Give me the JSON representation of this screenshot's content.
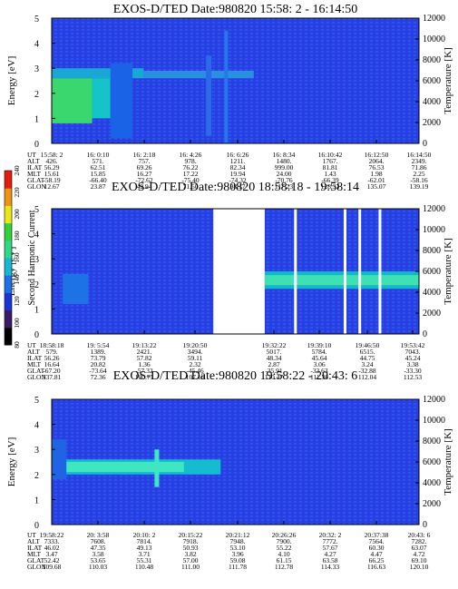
{
  "panels": [
    {
      "title": "EXOS-D/TED   Date:980820  15:58: 2 - 16:14:50",
      "ylabel_left": "Energy [eV]",
      "ylabel_right": "Temperature [K]",
      "table": {
        "row_labels": [
          "UT",
          "ALT",
          "ILAT",
          "MLT",
          "GLAT",
          "GLON"
        ],
        "columns": [
          [
            "15:58: 2",
            "426.",
            "56.29",
            "15.61",
            "-58.19",
            "12.67"
          ],
          [
            "16: 0:10",
            "571.",
            "62.51",
            "15.85",
            "-66.40",
            "23.87"
          ],
          [
            "16: 2:18",
            "757.",
            "69.26",
            "16.27",
            "-72.62",
            "42.94"
          ],
          [
            "16: 4:26",
            "978.",
            "76.22",
            "17.22",
            "-75.40",
            "71.50"
          ],
          [
            "16: 6:26",
            "1211.",
            "82.34",
            "19.94",
            "-74.32",
            "98.17"
          ],
          [
            "16: 8:34",
            "1480.",
            "999.00",
            "24.00",
            "-70.76",
            "117.23"
          ],
          [
            "16:10:42",
            "1767.",
            "81.81",
            "1.43",
            "-66.39",
            "128.33"
          ],
          [
            "16:12:50",
            "2064.",
            "76.53",
            "1.98",
            "-62.01",
            "135.07"
          ],
          [
            "16:14:50",
            "2349.",
            "71.86",
            "2.25",
            "-58.16",
            "139.19"
          ]
        ]
      }
    },
    {
      "title": "EXOS-D/TED   Date:980820  18:58:18 - 19:58:14",
      "ylabel_left": "Energy [eV]",
      "ylabel_right": "Temperature [K]",
      "table": {
        "row_labels": [
          "UT",
          "ALT",
          "ILAT",
          "MLT",
          "GLAT",
          "GLON"
        ],
        "columns": [
          [
            "18:58:18",
            "579.",
            "56.26",
            "16.64",
            "-67.20",
            "337.81"
          ],
          [
            "19: 5:54",
            "1389.",
            "73.79",
            "20.82",
            "-73.64",
            "72.36"
          ],
          [
            "19:13:22",
            "2421.",
            "57.82",
            "1.36",
            "-57.32",
            "100.75"
          ],
          [
            "19:20:50",
            "3494.",
            "59.11",
            "2.32",
            "-45.46",
            "107.16"
          ],
          [
            "19:32:22",
            "5017.",
            "48.34",
            "2.87",
            "-35.91",
            "110.47"
          ],
          [
            "19:39:10",
            "5784.",
            "45.64",
            "3.06",
            "-33.63",
            "111.36"
          ],
          [
            "19:46:50",
            "6515.",
            "44.75",
            "3.24",
            "-32.88",
            "112.04"
          ],
          [
            "19:53:42",
            "7043.",
            "45.24",
            "3.38",
            "-33.30",
            "112.53"
          ]
        ]
      }
    },
    {
      "title": "EXOS-D/TED   Date:980820  19:58:22 - 20:43: 6",
      "ylabel_left": "Energy [eV]",
      "ylabel_right": "Temperature [K]",
      "table": {
        "row_labels": [
          "UT",
          "ALT",
          "ILAT",
          "MLT",
          "GLAT",
          "GLON"
        ],
        "columns": [
          [
            "19:58:22",
            "7333.",
            "46.02",
            "3.47",
            "52.42",
            "109.68"
          ],
          [
            "20: 3:58",
            "7608.",
            "47.35",
            "3.58",
            "53.65",
            "110.03"
          ],
          [
            "20:10: 2",
            "7814.",
            "49.13",
            "3.71",
            "55.31",
            "110.48"
          ],
          [
            "20:15:22",
            "7918.",
            "50.93",
            "3.82",
            "57.00",
            "111.00"
          ],
          [
            "20:21:12",
            "7948.",
            "53.10",
            "3.96",
            "59.08",
            "111.78"
          ],
          [
            "20:26:26",
            "7900.",
            "55.22",
            "4.10",
            "61.15",
            "112.78"
          ],
          [
            "20:32: 2",
            "7772.",
            "57.67",
            "4.27",
            "63.58",
            "114.33"
          ],
          [
            "20:37:38",
            "7564.",
            "60.30",
            "4.47",
            "66.25",
            "116.63"
          ],
          [
            "20:43: 6",
            "7282.",
            "63.07",
            "4.72",
            "69.10",
            "120.10"
          ]
        ]
      }
    }
  ],
  "colorbar": {
    "label": "Second Harmonic Current",
    "ticks": [
      "80",
      "100",
      "120",
      "140",
      "160",
      "180",
      "200",
      "220",
      "240"
    ]
  },
  "chart_data": [
    {
      "type": "heatmap",
      "title": "EXOS-D/TED   Date:980820  15:58: 2 - 16:14:50",
      "ylabel": "Energy [eV]",
      "ylim": [
        0,
        5
      ],
      "yticks": [
        0,
        1,
        2,
        3,
        4,
        5
      ],
      "y2label": "Temperature [K]",
      "y2lim": [
        0,
        12000
      ],
      "y2ticks": [
        0,
        2000,
        4000,
        6000,
        8000,
        10000,
        12000
      ],
      "x_ticks": [
        "15:58: 2",
        "16: 0:10",
        "16: 2:18",
        "16: 4:26",
        "16: 6:26",
        "16: 8:34",
        "16:10:42",
        "16:12:50",
        "16:14:50"
      ],
      "colorscale": {
        "label": "Second Harmonic Current",
        "range": [
          80,
          240
        ]
      },
      "features": [
        {
          "ut_start": "15:58: 2",
          "ut_end": "16: 0:10",
          "energy_range": [
            0.8,
            2.6
          ],
          "level": "high (~160)"
        },
        {
          "ut_start": "15:58: 2",
          "ut_end": "16: 6:26",
          "energy_range": [
            2.6,
            3.0
          ],
          "level": "medium (~140)"
        }
      ]
    },
    {
      "type": "heatmap",
      "title": "EXOS-D/TED   Date:980820  18:58:18 - 19:58:14",
      "ylabel": "Energy [eV]",
      "ylim": [
        0,
        5
      ],
      "yticks": [
        0,
        1,
        2,
        3,
        4,
        5
      ],
      "y2label": "Temperature [K]",
      "y2lim": [
        0,
        12000
      ],
      "y2ticks": [
        0,
        2000,
        4000,
        6000,
        8000,
        10000,
        12000
      ],
      "x_ticks": [
        "18:58:18",
        "19: 5:54",
        "19:13:22",
        "19:20:50",
        "19:32:22",
        "19:39:10",
        "19:46:50",
        "19:53:42"
      ],
      "colorscale": {
        "label": "Second Harmonic Current",
        "range": [
          80,
          240
        ]
      },
      "features": [
        {
          "ut_start": "19:32:22",
          "ut_end": "19:58:14",
          "energy_range": [
            1.8,
            2.5
          ],
          "level": "high (~150)"
        }
      ]
    },
    {
      "type": "heatmap",
      "title": "EXOS-D/TED   Date:980820  19:58:22 - 20:43: 6",
      "ylabel": "Energy [eV]",
      "ylim": [
        0,
        5
      ],
      "yticks": [
        0,
        1,
        2,
        3,
        4,
        5
      ],
      "y2label": "Temperature [K]",
      "y2lim": [
        0,
        12000
      ],
      "y2ticks": [
        0,
        2000,
        4000,
        6000,
        8000,
        10000,
        12000
      ],
      "x_ticks": [
        "19:58:22",
        "20: 3:58",
        "20:10: 2",
        "20:15:22",
        "20:21:12",
        "20:26:26",
        "20:32: 2",
        "20:37:38",
        "20:43: 6"
      ],
      "colorscale": {
        "label": "Second Harmonic Current",
        "range": [
          80,
          240
        ]
      },
      "features": [
        {
          "ut_start": "19:58:22",
          "ut_end": "20:21:12",
          "energy_range": [
            2.0,
            2.6
          ],
          "level": "high (~150)"
        }
      ]
    }
  ]
}
